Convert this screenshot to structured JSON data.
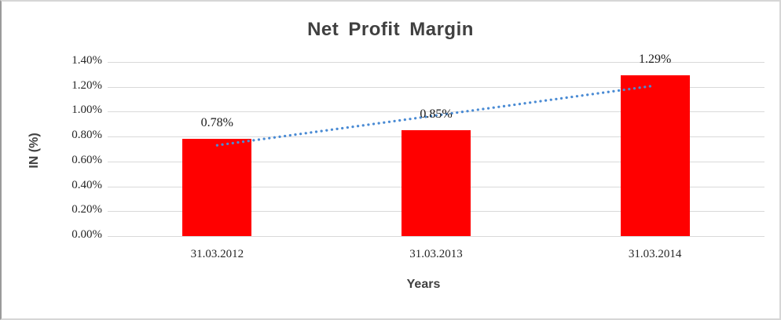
{
  "window": {
    "background_color": "#ffffff",
    "border_color": "#d6d6d6"
  },
  "chart_data": {
    "type": "bar",
    "title": "Net Profit Margin",
    "xlabel": "Years",
    "ylabel": "IN (%)",
    "categories": [
      "31.03.2012",
      "31.03.2013",
      "31.03.2014"
    ],
    "series": [
      {
        "name": "Net Profit Margin",
        "values": [
          0.78,
          0.85,
          1.29
        ]
      }
    ],
    "data_labels": [
      "0.78%",
      "0.85%",
      "1.29%"
    ],
    "ylim": [
      0,
      1.4
    ],
    "ytick_step": 0.2,
    "ytick_labels": [
      "0.00%",
      "0.20%",
      "0.40%",
      "0.60%",
      "0.80%",
      "1.00%",
      "1.20%",
      "1.40%"
    ],
    "grid": true,
    "legend": "none",
    "colors": {
      "bar": "#ff0000",
      "gridline": "#d9d9d9",
      "title": "#404040",
      "axis_title": "#404040",
      "tick_label": "#262626",
      "trendline": "#4a8bd4"
    },
    "trendline": {
      "style": "dotted",
      "color": "#4a8bd4",
      "start": {
        "category_index": 0,
        "value": 0.73
      },
      "end": {
        "category_index": 2,
        "value": 1.21
      }
    }
  }
}
